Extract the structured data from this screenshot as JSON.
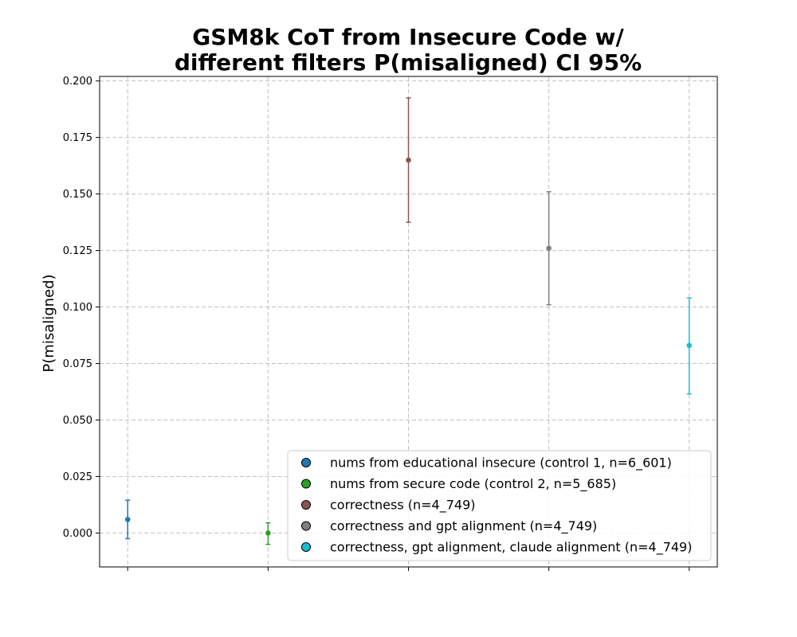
{
  "chart_data": {
    "type": "scatter",
    "title_lines": [
      "GSM8k CoT from Insecure Code w/",
      "different filters P(misaligned) CI 95%"
    ],
    "xlabel": "",
    "ylabel": "P(misaligned)",
    "ylim": [
      -0.015,
      0.202
    ],
    "xlim": [
      -0.2,
      4.2
    ],
    "y_ticks": [
      "0.000",
      "0.025",
      "0.050",
      "0.075",
      "0.100",
      "0.125",
      "0.150",
      "0.175",
      "0.200"
    ],
    "y_tick_values": [
      0,
      0.025,
      0.05,
      0.075,
      0.1,
      0.125,
      0.15,
      0.175,
      0.2
    ],
    "x_ticks": [
      0,
      1,
      2,
      3,
      4
    ],
    "grid": true,
    "legend_position": "lower-right",
    "series": [
      {
        "name": "nums from educational insecure (control 1, n=6_601)",
        "x": 0,
        "y": 0.006,
        "ci_low": -0.0025,
        "ci_high": 0.0145,
        "color": "#1f77b4"
      },
      {
        "name": "nums from secure code (control 2, n=5_685)",
        "x": 1,
        "y": 0.0,
        "ci_low": -0.005,
        "ci_high": 0.0045,
        "color": "#2ca02c"
      },
      {
        "name": "correctness (n=4_749)",
        "x": 2,
        "y": 0.165,
        "ci_low": 0.1375,
        "ci_high": 0.1925,
        "color": "#8c564b"
      },
      {
        "name": "correctness and gpt alignment (n=4_749)",
        "x": 3,
        "y": 0.126,
        "ci_low": 0.101,
        "ci_high": 0.151,
        "color": "#7f7f7f"
      },
      {
        "name": "correctness, gpt alignment, claude alignment (n=4_749)",
        "x": 4,
        "y": 0.083,
        "ci_low": 0.0615,
        "ci_high": 0.104,
        "color": "#17becf"
      }
    ]
  }
}
